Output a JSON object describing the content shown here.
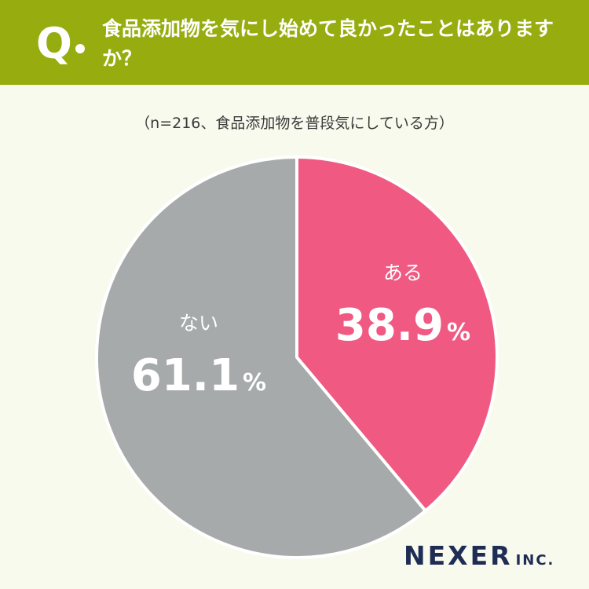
{
  "question": {
    "mark": "Q",
    "text": "食品添加物を気にし始めて良かったことはありますか？"
  },
  "sample_note": "（n=216、食品添加物を普段気にしている方）",
  "chart_data": {
    "type": "pie",
    "categories": [
      "ある",
      "ない"
    ],
    "values": [
      38.9,
      61.1
    ],
    "value_labels": [
      "38.9",
      "61.1"
    ],
    "unit": "%",
    "colors": [
      "#f05a82",
      "#a7aaab"
    ],
    "start": "12 o'clock",
    "direction": "clockwise"
  },
  "brand": {
    "name": "NEXER",
    "suffix": "INC."
  },
  "colors": {
    "header": "#97ad0f",
    "background": "#f9faee",
    "brand": "#1f2d55"
  }
}
